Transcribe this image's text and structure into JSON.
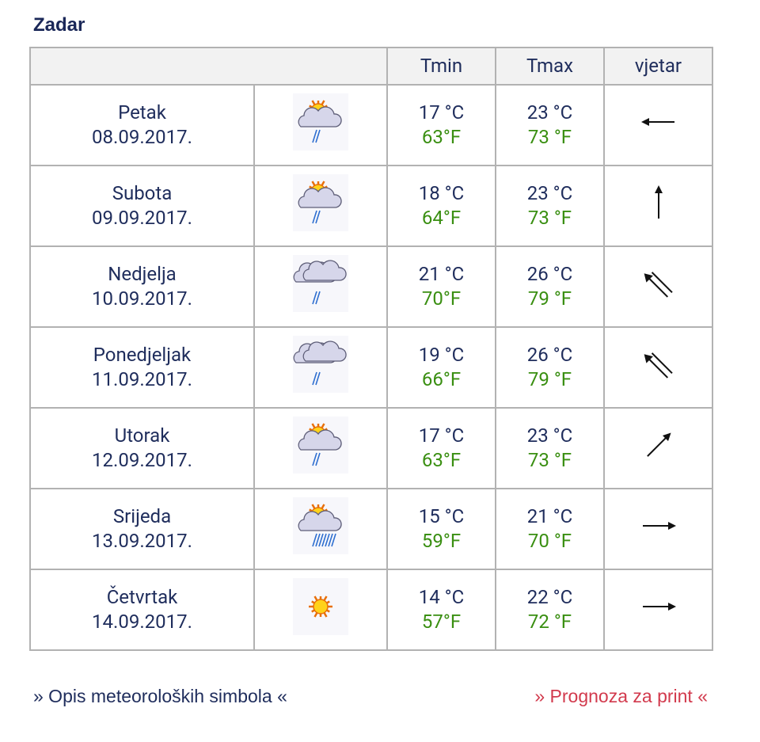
{
  "title": "Zadar",
  "table": {
    "header": [
      "Tmin",
      "Tmax",
      "vjetar"
    ],
    "rows": [
      {
        "day": "Petak",
        "date": "08.09.2017.",
        "tmin_c": "17 °C",
        "tmin_f": "63°F",
        "tmax_c": "23 °C",
        "tmax_f": "73 °F"
      },
      {
        "day": "Subota",
        "date": "09.09.2017.",
        "tmin_c": "18 °C",
        "tmin_f": "64°F",
        "tmax_c": "23 °C",
        "tmax_f": "73 °F"
      },
      {
        "day": "Nedjelja",
        "date": "10.09.2017.",
        "tmin_c": "21 °C",
        "tmin_f": "70°F",
        "tmax_c": "26 °C",
        "tmax_f": "79 °F"
      },
      {
        "day": "Ponedjeljak",
        "date": "11.09.2017.",
        "tmin_c": "19 °C",
        "tmin_f": "66°F",
        "tmax_c": "26 °C",
        "tmax_f": "79 °F"
      },
      {
        "day": "Utorak",
        "date": "12.09.2017.",
        "tmin_c": "17 °C",
        "tmin_f": "63°F",
        "tmax_c": "23 °C",
        "tmax_f": "73 °F"
      },
      {
        "day": "Srijeda",
        "date": "13.09.2017.",
        "tmin_c": "15 °C",
        "tmin_f": "59°F",
        "tmax_c": "21 °C",
        "tmax_f": "70 °F"
      },
      {
        "day": "Četvrtak",
        "date": "14.09.2017.",
        "tmin_c": "14 °C",
        "tmin_f": "57°F",
        "tmax_c": "22 °C",
        "tmax_f": "72 °F"
      }
    ]
  },
  "footer": {
    "symbols_link": "» Opis meteoroloških simbola «",
    "print_link": "» Prognoza za print «"
  }
}
